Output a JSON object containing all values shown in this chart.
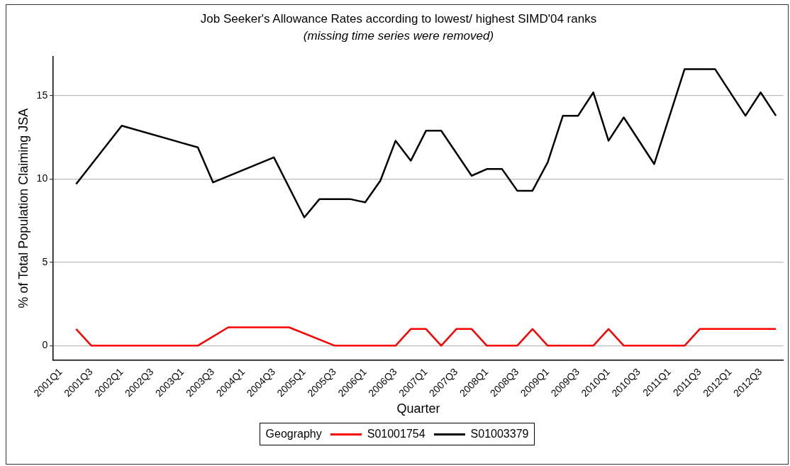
{
  "chart_data": {
    "type": "line",
    "title": "Job Seeker's Allowance Rates according to lowest/ highest SIMD'04 ranks",
    "subtitle": "(missing time series were removed)",
    "xlabel": "Quarter",
    "ylabel": "% of Total Population Claiming JSA",
    "legend_title": "Geography",
    "legend": "bottom",
    "grid": "y",
    "line_style": "solid",
    "marker": "none",
    "categories": [
      "2001Q1",
      null,
      "2001Q3",
      null,
      "2002Q1",
      null,
      "2002Q3",
      null,
      "2003Q1",
      null,
      "2003Q3",
      null,
      "2004Q1",
      null,
      "2004Q3",
      null,
      "2005Q1",
      null,
      "2005Q3",
      null,
      "2006Q1",
      null,
      "2006Q3",
      null,
      "2007Q1",
      null,
      "2007Q3",
      null,
      "2008Q1",
      null,
      "2008Q3",
      null,
      "2009Q1",
      null,
      "2009Q3",
      null,
      "2010Q1",
      null,
      "2010Q3",
      null,
      "2011Q1",
      null,
      "2011Q3",
      null,
      "2012Q1",
      null,
      "2012Q3",
      null
    ],
    "ylim": [
      -0.85,
      17.35
    ],
    "yticks": [
      0,
      5,
      10,
      15
    ],
    "series": [
      {
        "name": "S01001754",
        "color": "#ff0000",
        "values": [
          null,
          1.0,
          0,
          0,
          0,
          0,
          0,
          0,
          0,
          0,
          null,
          1.1,
          1.1,
          1.1,
          1.1,
          1.1,
          null,
          null,
          0,
          0,
          0,
          0,
          0,
          1,
          1,
          0,
          1,
          1,
          0,
          0,
          0,
          1,
          0,
          0,
          0,
          0,
          1,
          0,
          0,
          0,
          0,
          0,
          1,
          1,
          1,
          1,
          1,
          1
        ]
      },
      {
        "name": "S01003379",
        "color": "#000000",
        "values": [
          null,
          9.7,
          null,
          null,
          13.2,
          null,
          null,
          null,
          null,
          11.9,
          9.8,
          null,
          null,
          null,
          11.3,
          null,
          7.7,
          8.8,
          8.8,
          8.8,
          8.6,
          9.9,
          12.3,
          11.1,
          12.9,
          12.9,
          null,
          10.2,
          10.6,
          10.6,
          9.3,
          9.3,
          11.0,
          13.8,
          13.8,
          15.2,
          12.3,
          13.7,
          null,
          10.9,
          null,
          16.6,
          16.6,
          16.6,
          null,
          13.8,
          15.2,
          13.8
        ]
      }
    ]
  }
}
